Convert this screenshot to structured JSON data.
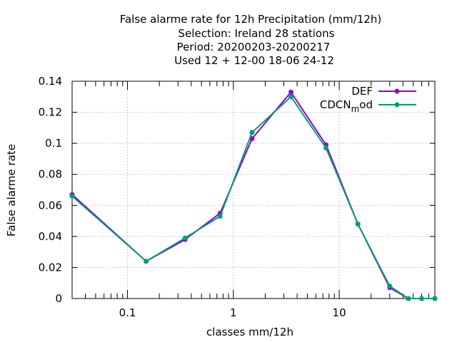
{
  "chart_data": {
    "type": "line",
    "title_lines": [
      "False alarme rate  for 12h Precipitation (mm/12h)",
      "Selection: Ireland     28 stations",
      "Period: 20200203-20200217",
      "Used  12 + 12-00 18-06 24-12"
    ],
    "xlabel": "classes mm/12h",
    "ylabel": "False alarme rate",
    "x_scale": "log",
    "xlim": [
      0.03,
      80
    ],
    "ylim": [
      0,
      0.14
    ],
    "x_ticks": [
      {
        "value": 0.1,
        "label": "0.1"
      },
      {
        "value": 1,
        "label": "1"
      },
      {
        "value": 10,
        "label": "10"
      }
    ],
    "y_ticks": [
      {
        "value": 0,
        "label": "0"
      },
      {
        "value": 0.02,
        "label": "0.02"
      },
      {
        "value": 0.04,
        "label": "0.04"
      },
      {
        "value": 0.06,
        "label": "0.06"
      },
      {
        "value": 0.08,
        "label": "0.08"
      },
      {
        "value": 0.1,
        "label": "0.1"
      },
      {
        "value": 0.12,
        "label": "0.12"
      },
      {
        "value": 0.14,
        "label": "0.14"
      }
    ],
    "grid": true,
    "legend_position": "top-right",
    "x": [
      0.03,
      0.15,
      0.35,
      0.75,
      1.5,
      3.5,
      7.5,
      15,
      30,
      45,
      60,
      80
    ],
    "series": [
      {
        "name": "DEF",
        "color": "#9400d3",
        "values": [
          0.067,
          0.024,
          0.038,
          0.055,
          0.103,
          0.133,
          0.099,
          0.048,
          0.007,
          0.0,
          0.0,
          0.0
        ]
      },
      {
        "name": "CDCN_mod",
        "legend_main": "CDCN",
        "legend_sub": "m",
        "legend_tail": "od",
        "color": "#009e73",
        "values": [
          0.066,
          0.024,
          0.039,
          0.053,
          0.107,
          0.13,
          0.097,
          0.048,
          0.008,
          0.0,
          0.0,
          0.0
        ]
      }
    ]
  }
}
